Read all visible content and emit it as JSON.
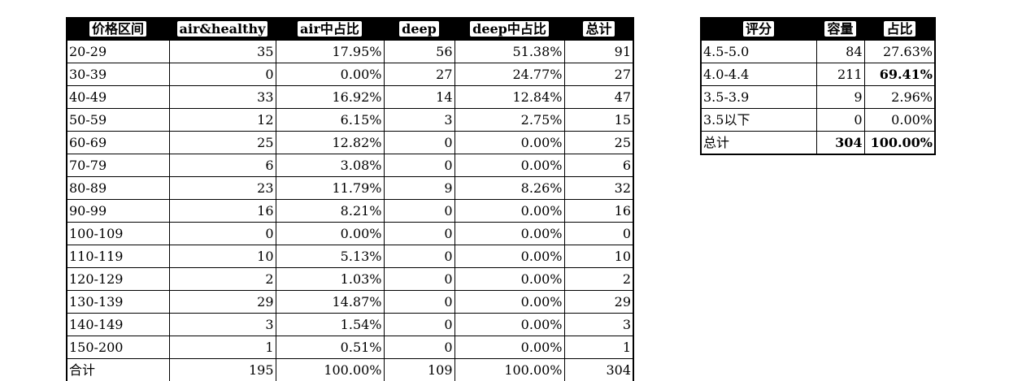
{
  "price_table": {
    "headers": [
      "价格区间",
      "air&healthy",
      "air中占比",
      "deep",
      "deep中占比",
      "总计"
    ],
    "rows": [
      [
        "20-29",
        "35",
        "17.95%",
        "56",
        "51.38%",
        "91"
      ],
      [
        "30-39",
        "0",
        "0.00%",
        "27",
        "24.77%",
        "27"
      ],
      [
        "40-49",
        "33",
        "16.92%",
        "14",
        "12.84%",
        "47"
      ],
      [
        "50-59",
        "12",
        "6.15%",
        "3",
        "2.75%",
        "15"
      ],
      [
        "60-69",
        "25",
        "12.82%",
        "0",
        "0.00%",
        "25"
      ],
      [
        "70-79",
        "6",
        "3.08%",
        "0",
        "0.00%",
        "6"
      ],
      [
        "80-89",
        "23",
        "11.79%",
        "9",
        "8.26%",
        "32"
      ],
      [
        "90-99",
        "16",
        "8.21%",
        "0",
        "0.00%",
        "16"
      ],
      [
        "100-109",
        "0",
        "0.00%",
        "0",
        "0.00%",
        "0"
      ],
      [
        "110-119",
        "10",
        "5.13%",
        "0",
        "0.00%",
        "10"
      ],
      [
        "120-129",
        "2",
        "1.03%",
        "0",
        "0.00%",
        "2"
      ],
      [
        "130-139",
        "29",
        "14.87%",
        "0",
        "0.00%",
        "29"
      ],
      [
        "140-149",
        "3",
        "1.54%",
        "0",
        "0.00%",
        "3"
      ],
      [
        "150-200",
        "1",
        "0.51%",
        "0",
        "0.00%",
        "1"
      ]
    ],
    "total_row": [
      "合计",
      "195",
      "100.00%",
      "109",
      "100.00%",
      "304"
    ]
  },
  "rating_table": {
    "headers": [
      "评分",
      "容量",
      "占比"
    ],
    "rows": [
      [
        "4.5-5.0",
        "84",
        "27.63%"
      ],
      [
        "4.0-4.4",
        "211",
        "69.41%"
      ],
      [
        "3.5-3.9",
        "9",
        "2.96%"
      ],
      [
        "3.5以下",
        "0",
        "0.00%"
      ]
    ],
    "total_row": [
      "总计",
      "304",
      "100.00%"
    ]
  }
}
